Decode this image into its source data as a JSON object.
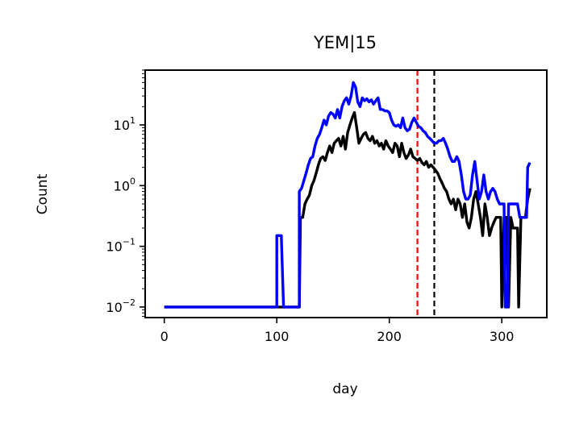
{
  "chart_data": {
    "type": "line",
    "title": "YEM|15",
    "xlabel": "day",
    "ylabel": "Count",
    "xlim": [
      -17,
      340
    ],
    "ylim": [
      0.0067,
      80
    ],
    "yscale": "log",
    "grid": false,
    "x_ticks": [
      {
        "value": 0,
        "label": "0"
      },
      {
        "value": 100,
        "label": "100"
      },
      {
        "value": 200,
        "label": "200"
      },
      {
        "value": 300,
        "label": "300"
      }
    ],
    "y_ticks": [
      {
        "value": 0.01,
        "base": "10",
        "exp": "−2"
      },
      {
        "value": 0.1,
        "base": "10",
        "exp": "−1"
      },
      {
        "value": 1,
        "base": "10",
        "exp": "0"
      },
      {
        "value": 10,
        "base": "10",
        "exp": "1"
      }
    ],
    "vlines": [
      {
        "x": 225,
        "color": "#ff0000",
        "style": "dashed"
      },
      {
        "x": 240,
        "color": "#000000",
        "style": "dashed"
      }
    ],
    "series": [
      {
        "color": "#000000",
        "points": [
          [
            0,
            0.01
          ],
          [
            98,
            0.01
          ],
          [
            100,
            0.01
          ],
          [
            102,
            0.01
          ],
          [
            104,
            0.01
          ],
          [
            106,
            0.01
          ],
          [
            108,
            0.01
          ],
          [
            110,
            0.01
          ],
          [
            118,
            0.01
          ],
          [
            120,
            0.01
          ],
          [
            121,
            0.3
          ],
          [
            123,
            0.3
          ],
          [
            125,
            0.5
          ],
          [
            127,
            0.6
          ],
          [
            129,
            0.7
          ],
          [
            131,
            1.0
          ],
          [
            133,
            1.2
          ],
          [
            135,
            1.6
          ],
          [
            137,
            2.2
          ],
          [
            139,
            2.8
          ],
          [
            141,
            3.0
          ],
          [
            143,
            2.6
          ],
          [
            145,
            3.5
          ],
          [
            147,
            4.5
          ],
          [
            149,
            3.5
          ],
          [
            151,
            5.0
          ],
          [
            153,
            5.5
          ],
          [
            155,
            6.0
          ],
          [
            157,
            4.5
          ],
          [
            159,
            6.5
          ],
          [
            161,
            4.0
          ],
          [
            163,
            7.5
          ],
          [
            165,
            10.0
          ],
          [
            167,
            13.0
          ],
          [
            169,
            16.0
          ],
          [
            171,
            9.0
          ],
          [
            173,
            5.0
          ],
          [
            175,
            6.0
          ],
          [
            177,
            7.0
          ],
          [
            179,
            7.5
          ],
          [
            181,
            6.0
          ],
          [
            183,
            5.5
          ],
          [
            185,
            6.5
          ],
          [
            187,
            5.0
          ],
          [
            189,
            5.5
          ],
          [
            191,
            4.5
          ],
          [
            193,
            5.0
          ],
          [
            195,
            4.0
          ],
          [
            197,
            5.5
          ],
          [
            199,
            4.5
          ],
          [
            201,
            4.0
          ],
          [
            203,
            3.5
          ],
          [
            205,
            5.0
          ],
          [
            207,
            4.5
          ],
          [
            209,
            3.0
          ],
          [
            211,
            5.0
          ],
          [
            213,
            3.5
          ],
          [
            215,
            2.8
          ],
          [
            217,
            3.2
          ],
          [
            219,
            4.0
          ],
          [
            221,
            3.0
          ],
          [
            223,
            2.8
          ],
          [
            225,
            2.6
          ],
          [
            227,
            2.8
          ],
          [
            229,
            2.4
          ],
          [
            231,
            2.2
          ],
          [
            233,
            2.5
          ],
          [
            235,
            2.0
          ],
          [
            237,
            2.2
          ],
          [
            239,
            2.0
          ],
          [
            241,
            1.8
          ],
          [
            243,
            1.6
          ],
          [
            245,
            1.3
          ],
          [
            247,
            1.1
          ],
          [
            249,
            0.9
          ],
          [
            251,
            0.8
          ],
          [
            253,
            0.6
          ],
          [
            255,
            0.5
          ],
          [
            257,
            0.6
          ],
          [
            259,
            0.4
          ],
          [
            261,
            0.6
          ],
          [
            263,
            0.5
          ],
          [
            265,
            0.3
          ],
          [
            267,
            0.5
          ],
          [
            269,
            0.25
          ],
          [
            271,
            0.2
          ],
          [
            273,
            0.3
          ],
          [
            275,
            0.6
          ],
          [
            277,
            0.8
          ],
          [
            279,
            0.5
          ],
          [
            281,
            0.3
          ],
          [
            283,
            0.15
          ],
          [
            285,
            0.5
          ],
          [
            287,
            0.3
          ],
          [
            289,
            0.15
          ],
          [
            291,
            0.2
          ],
          [
            293,
            0.25
          ],
          [
            295,
            0.3
          ],
          [
            297,
            0.3
          ],
          [
            299,
            0.3
          ],
          [
            300,
            0.01
          ],
          [
            302,
            0.3
          ],
          [
            304,
            0.3
          ],
          [
            306,
            0.01
          ],
          [
            308,
            0.3
          ],
          [
            310,
            0.2
          ],
          [
            312,
            0.2
          ],
          [
            314,
            0.2
          ],
          [
            315,
            0.01
          ],
          [
            317,
            0.3
          ],
          [
            319,
            0.3
          ],
          [
            321,
            0.3
          ],
          [
            323,
            0.6
          ],
          [
            325,
            0.9
          ]
        ]
      },
      {
        "color": "#0000ff",
        "points": [
          [
            0,
            0.01
          ],
          [
            98,
            0.01
          ],
          [
            100,
            0.01
          ],
          [
            100,
            0.15
          ],
          [
            104,
            0.15
          ],
          [
            106,
            0.01
          ],
          [
            108,
            0.01
          ],
          [
            110,
            0.01
          ],
          [
            118,
            0.01
          ],
          [
            120,
            0.01
          ],
          [
            120,
            0.8
          ],
          [
            122,
            0.9
          ],
          [
            124,
            1.2
          ],
          [
            126,
            1.6
          ],
          [
            128,
            2.2
          ],
          [
            130,
            2.8
          ],
          [
            132,
            3.0
          ],
          [
            134,
            4.5
          ],
          [
            136,
            6.0
          ],
          [
            138,
            7.0
          ],
          [
            140,
            9.0
          ],
          [
            142,
            12.0
          ],
          [
            144,
            10.0
          ],
          [
            146,
            14.0
          ],
          [
            148,
            16.0
          ],
          [
            150,
            15.0
          ],
          [
            152,
            13.0
          ],
          [
            154,
            18.0
          ],
          [
            156,
            13.0
          ],
          [
            158,
            20.0
          ],
          [
            160,
            25.0
          ],
          [
            162,
            28.0
          ],
          [
            164,
            22.0
          ],
          [
            166,
            30.0
          ],
          [
            168,
            50.0
          ],
          [
            170,
            42.0
          ],
          [
            172,
            24.0
          ],
          [
            174,
            20.0
          ],
          [
            176,
            28.0
          ],
          [
            178,
            25.0
          ],
          [
            180,
            27.0
          ],
          [
            182,
            24.0
          ],
          [
            184,
            26.0
          ],
          [
            186,
            22.0
          ],
          [
            188,
            25.0
          ],
          [
            190,
            28.0
          ],
          [
            192,
            18.0
          ],
          [
            194,
            18.0
          ],
          [
            196,
            17.0
          ],
          [
            198,
            17.0
          ],
          [
            200,
            16.0
          ],
          [
            202,
            12.0
          ],
          [
            204,
            10.0
          ],
          [
            206,
            9.5
          ],
          [
            208,
            10.0
          ],
          [
            210,
            9.0
          ],
          [
            212,
            13.0
          ],
          [
            214,
            9.0
          ],
          [
            216,
            8.0
          ],
          [
            218,
            8.5
          ],
          [
            220,
            11.0
          ],
          [
            222,
            13.0
          ],
          [
            224,
            11.0
          ],
          [
            226,
            9.5
          ],
          [
            228,
            9.0
          ],
          [
            230,
            8.0
          ],
          [
            232,
            7.5
          ],
          [
            234,
            6.5
          ],
          [
            236,
            6.0
          ],
          [
            238,
            5.5
          ],
          [
            240,
            5.0
          ],
          [
            242,
            5.0
          ],
          [
            244,
            5.5
          ],
          [
            246,
            5.5
          ],
          [
            248,
            6.0
          ],
          [
            250,
            5.0
          ],
          [
            252,
            4.0
          ],
          [
            254,
            3.0
          ],
          [
            256,
            2.5
          ],
          [
            258,
            2.5
          ],
          [
            260,
            3.0
          ],
          [
            262,
            2.5
          ],
          [
            264,
            1.5
          ],
          [
            266,
            0.8
          ],
          [
            268,
            0.6
          ],
          [
            270,
            0.6
          ],
          [
            272,
            0.7
          ],
          [
            274,
            1.5
          ],
          [
            276,
            2.5
          ],
          [
            278,
            1.2
          ],
          [
            280,
            0.6
          ],
          [
            282,
            0.8
          ],
          [
            284,
            1.5
          ],
          [
            286,
            0.8
          ],
          [
            288,
            0.6
          ],
          [
            290,
            0.8
          ],
          [
            292,
            0.9
          ],
          [
            294,
            0.8
          ],
          [
            296,
            0.6
          ],
          [
            298,
            0.5
          ],
          [
            300,
            0.5
          ],
          [
            302,
            0.5
          ],
          [
            303,
            0.01
          ],
          [
            305,
            0.01
          ],
          [
            306,
            0.5
          ],
          [
            308,
            0.5
          ],
          [
            310,
            0.5
          ],
          [
            312,
            0.5
          ],
          [
            314,
            0.5
          ],
          [
            316,
            0.3
          ],
          [
            318,
            0.3
          ],
          [
            320,
            0.3
          ],
          [
            322,
            0.3
          ],
          [
            323,
            2.0
          ],
          [
            325,
            2.4
          ]
        ]
      }
    ]
  }
}
